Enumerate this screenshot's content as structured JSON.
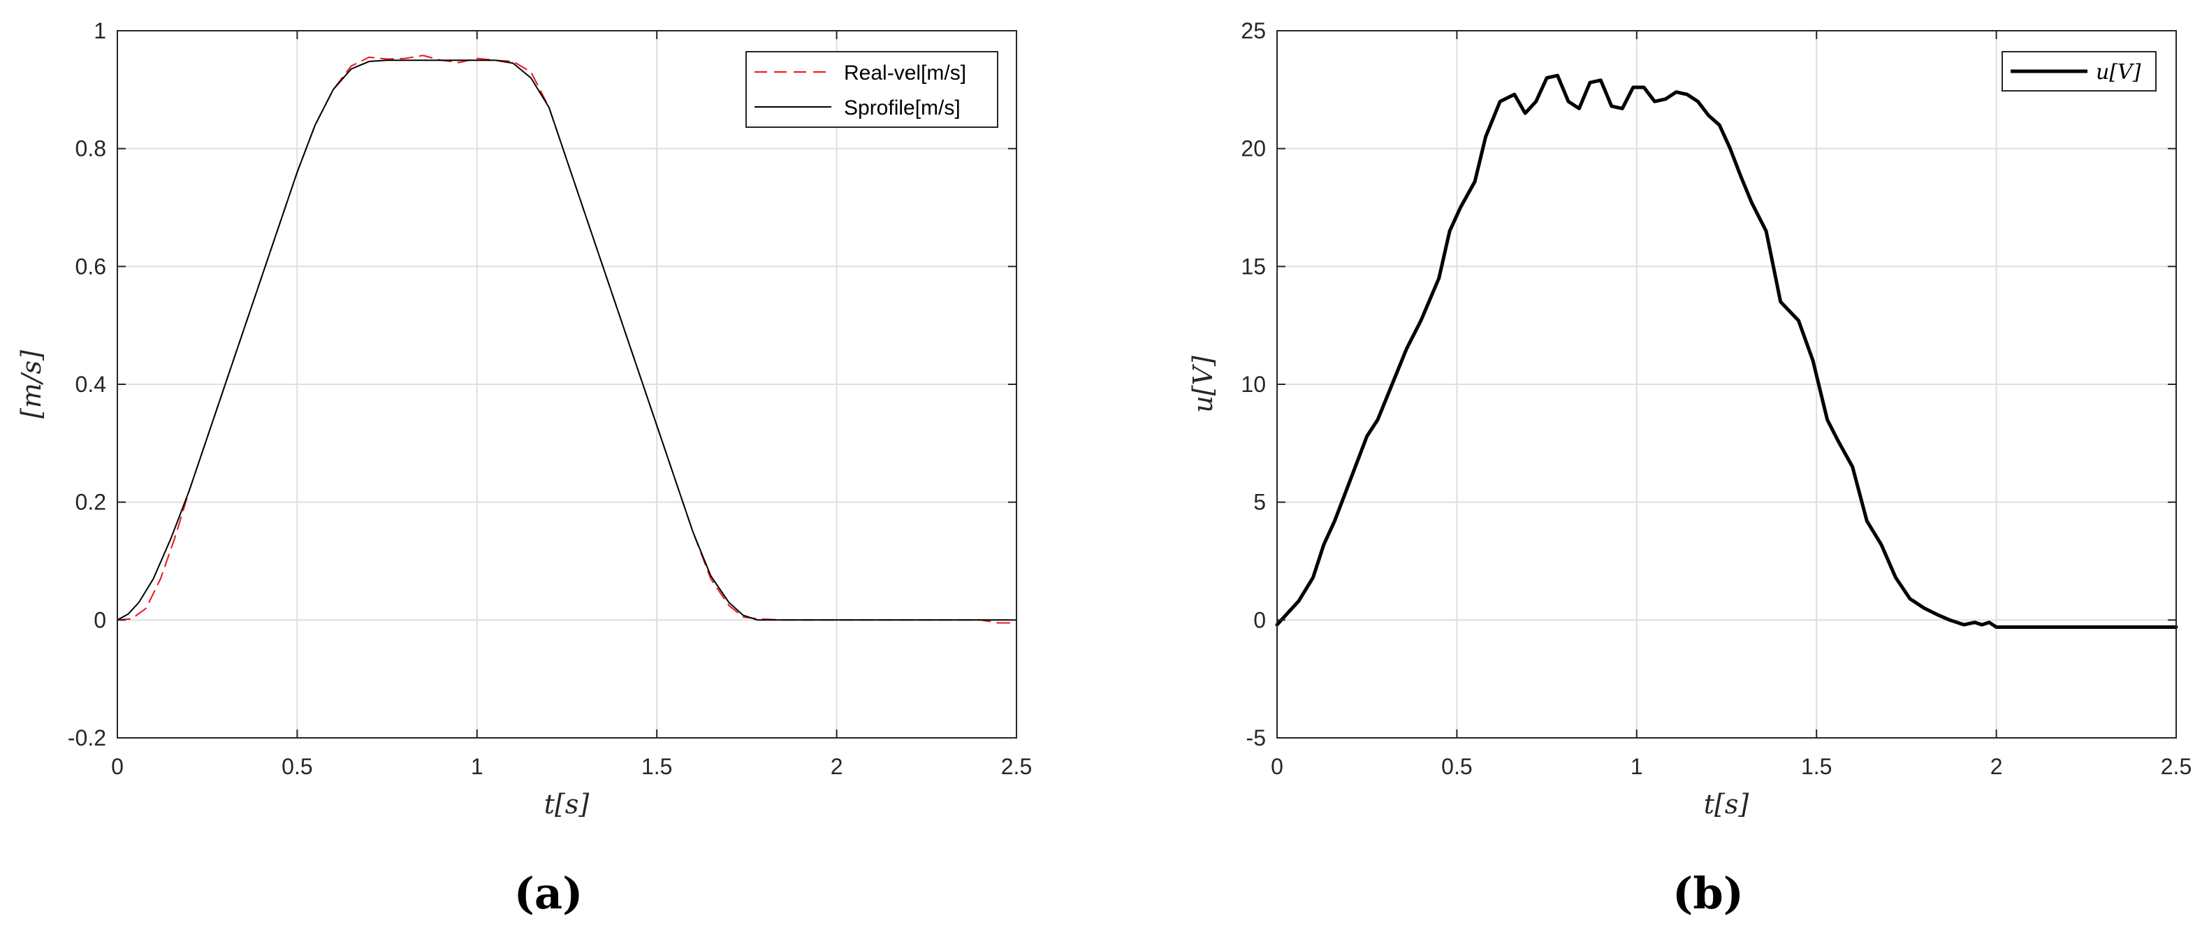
{
  "chart_data": [
    {
      "type": "line",
      "panel_label": "(a)",
      "xlabel": "t[s]",
      "ylabel": "[m/s]",
      "xlim": [
        0,
        2.5
      ],
      "ylim": [
        -0.2,
        1
      ],
      "xticks": [
        0,
        0.5,
        1,
        1.5,
        2,
        2.5
      ],
      "xtick_labels": [
        "0",
        "0.5",
        "1",
        "1.5",
        "2",
        "2.5"
      ],
      "yticks": [
        -0.2,
        0,
        0.2,
        0.4,
        0.6,
        0.8,
        1
      ],
      "ytick_labels": [
        "-0.2",
        "0",
        "0.2",
        "0.4",
        "0.6",
        "0.8",
        "1"
      ],
      "grid": true,
      "legend": "top-right",
      "series": [
        {
          "name": "Real-vel[m/s]",
          "color": "#e8141c",
          "dash": "dashed",
          "x": [
            0,
            0.04,
            0.08,
            0.12,
            0.16,
            0.2,
            0.3,
            0.4,
            0.5,
            0.55,
            0.6,
            0.65,
            0.7,
            0.75,
            0.8,
            0.85,
            0.9,
            0.95,
            1.0,
            1.05,
            1.1,
            1.15,
            1.2,
            1.3,
            1.4,
            1.5,
            1.6,
            1.65,
            1.7,
            1.74,
            1.78,
            1.85,
            2.0,
            2.2,
            2.4,
            2.45,
            2.5
          ],
          "y": [
            0,
            0.002,
            0.02,
            0.07,
            0.14,
            0.22,
            0.4,
            0.58,
            0.76,
            0.84,
            0.9,
            0.94,
            0.955,
            0.952,
            0.953,
            0.958,
            0.95,
            0.946,
            0.953,
            0.95,
            0.948,
            0.93,
            0.87,
            0.69,
            0.51,
            0.33,
            0.15,
            0.07,
            0.025,
            0.005,
            0.002,
            0,
            0,
            0,
            0,
            -0.005,
            -0.005
          ]
        },
        {
          "name": "Sprofile[m/s]",
          "color": "#000000",
          "dash": "solid",
          "x": [
            0,
            0.03,
            0.06,
            0.1,
            0.15,
            0.2,
            0.3,
            0.4,
            0.5,
            0.55,
            0.6,
            0.65,
            0.7,
            0.75,
            1.05,
            1.1,
            1.15,
            1.2,
            1.3,
            1.4,
            1.5,
            1.6,
            1.65,
            1.7,
            1.74,
            1.78,
            2.0,
            2.5
          ],
          "y": [
            0,
            0.01,
            0.03,
            0.07,
            0.14,
            0.22,
            0.4,
            0.58,
            0.76,
            0.84,
            0.9,
            0.935,
            0.948,
            0.95,
            0.95,
            0.945,
            0.92,
            0.87,
            0.69,
            0.51,
            0.33,
            0.15,
            0.075,
            0.03,
            0.008,
            0,
            0,
            0
          ]
        }
      ]
    },
    {
      "type": "line",
      "panel_label": "(b)",
      "xlabel": "t[s]",
      "ylabel": "u[V]",
      "xlim": [
        0,
        2.5
      ],
      "ylim": [
        -5,
        25
      ],
      "xticks": [
        0,
        0.5,
        1,
        1.5,
        2,
        2.5
      ],
      "xtick_labels": [
        "0",
        "0.5",
        "1",
        "1.5",
        "2",
        "2.5"
      ],
      "yticks": [
        -5,
        0,
        5,
        10,
        15,
        20,
        25
      ],
      "ytick_labels": [
        "-5",
        "0",
        "5",
        "10",
        "15",
        "20",
        "25"
      ],
      "grid": true,
      "legend": "top-right",
      "series": [
        {
          "name": "u[V]",
          "color": "#000000",
          "dash": "solid",
          "x": [
            0,
            0.03,
            0.06,
            0.1,
            0.13,
            0.16,
            0.2,
            0.25,
            0.28,
            0.32,
            0.36,
            0.4,
            0.45,
            0.48,
            0.51,
            0.55,
            0.58,
            0.62,
            0.66,
            0.69,
            0.72,
            0.75,
            0.78,
            0.81,
            0.84,
            0.87,
            0.9,
            0.93,
            0.96,
            0.99,
            1.02,
            1.05,
            1.08,
            1.11,
            1.14,
            1.17,
            1.2,
            1.23,
            1.26,
            1.29,
            1.32,
            1.36,
            1.4,
            1.45,
            1.49,
            1.53,
            1.56,
            1.6,
            1.64,
            1.68,
            1.72,
            1.76,
            1.8,
            1.84,
            1.87,
            1.91,
            1.94,
            1.96,
            1.98,
            2.0,
            2.02,
            2.05,
            2.1,
            2.2,
            2.5
          ],
          "y": [
            -0.2,
            0.3,
            0.8,
            1.8,
            3.2,
            4.2,
            5.8,
            7.8,
            8.5,
            10.0,
            11.5,
            12.7,
            14.5,
            16.5,
            17.5,
            18.6,
            20.5,
            22.0,
            22.3,
            21.5,
            22.0,
            23.0,
            23.1,
            22.0,
            21.7,
            22.8,
            22.9,
            21.8,
            21.7,
            22.6,
            22.6,
            22.0,
            22.1,
            22.4,
            22.3,
            22.0,
            21.4,
            21.0,
            20.0,
            18.8,
            17.7,
            16.5,
            13.5,
            12.7,
            11.0,
            8.5,
            7.6,
            6.5,
            4.2,
            3.2,
            1.8,
            0.9,
            0.5,
            0.2,
            0.0,
            -0.2,
            -0.1,
            -0.2,
            -0.1,
            -0.3,
            -0.3,
            -0.3,
            -0.3,
            -0.3,
            -0.3
          ]
        }
      ]
    }
  ]
}
